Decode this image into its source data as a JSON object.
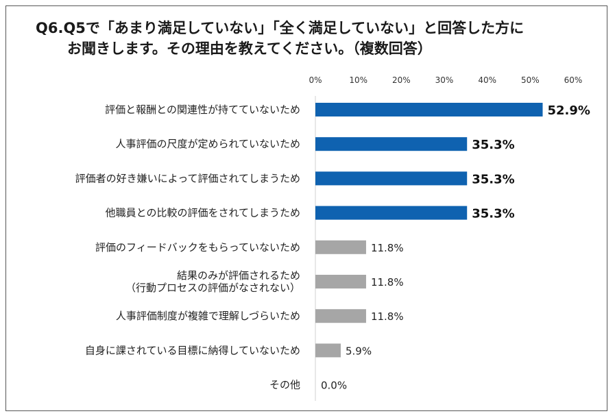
{
  "title": {
    "line1": "Q6.Q5で「あまり満足していない」「全く満足していない」と回答した方に",
    "line2": "お聞きします。その理由を教えてください。（複数回答）"
  },
  "chart_data": {
    "type": "bar",
    "orientation": "horizontal",
    "x_ticks": [
      "0%",
      "10%",
      "20%",
      "30%",
      "40%",
      "50%",
      "60%"
    ],
    "xlim": [
      0,
      60
    ],
    "categories": [
      [
        "評価と報酬との関連性が持てていないため"
      ],
      [
        "人事評価の尺度が定められていないため"
      ],
      [
        "評価者の好き嫌いによって評価されてしまうため"
      ],
      [
        "他職員との比較の評価をされてしまうため"
      ],
      [
        "評価のフィードバックをもらっていないため"
      ],
      [
        "結果のみが評価されるため",
        "（行動プロセスの評価がなされない）"
      ],
      [
        "人事評価制度が複雑で理解しづらいため"
      ],
      [
        "自身に課されている目標に納得していないため"
      ],
      [
        "その他"
      ]
    ],
    "values": [
      52.9,
      35.3,
      35.3,
      35.3,
      11.8,
      11.8,
      11.8,
      5.9,
      0.0
    ],
    "value_labels": [
      "52.9%",
      "35.3%",
      "35.3%",
      "35.3%",
      "11.8%",
      "11.8%",
      "11.8%",
      "5.9%",
      "0.0%"
    ],
    "colors": {
      "highlight": "#0f62b0",
      "normal": "#a6a6a6",
      "axis": "#d0d0d0"
    },
    "highlight_flags": [
      true,
      true,
      true,
      true,
      false,
      false,
      false,
      false,
      false
    ]
  }
}
